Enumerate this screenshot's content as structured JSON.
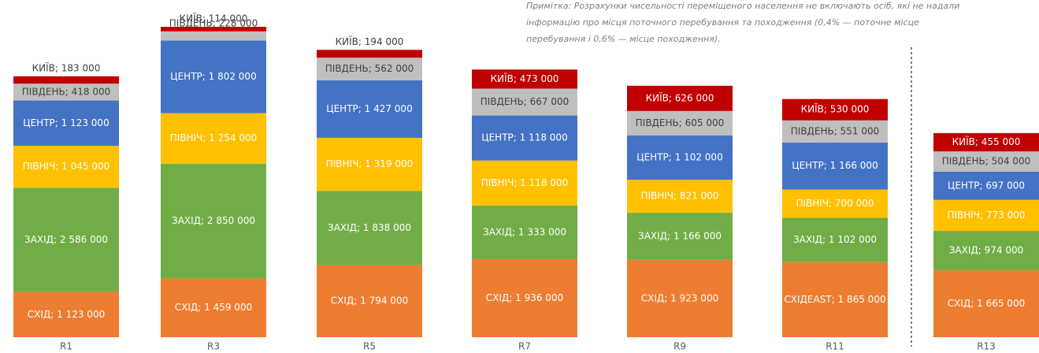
{
  "chart_data": {
    "type": "stacked_bar",
    "note": [
      "Примітка: Розрахунки чисельності переміщеного населення не включають осіб, які не надали",
      "інформацію про місця поточного перебування та походження (0,4% — поточне місце",
      "перебування і 0,6% — місце походження)."
    ],
    "categories": [
      "R1",
      "R3",
      "R5",
      "R7",
      "R9",
      "R11",
      "R13"
    ],
    "series": [
      {
        "name": "СХІД",
        "color": "#ed7d31",
        "values": [
          1123000,
          1459000,
          1794000,
          1936000,
          1923000,
          1865000,
          1665000
        ],
        "value_labels": [
          "СХІД; 1 123 000",
          "СХІД; 1 459 000",
          "СХІД; 1 794 000",
          "СХІД; 1 936 000",
          "СХІД; 1 923 000",
          "СХІДEAST; 1 865 000",
          "СХІД; 1 665 000"
        ]
      },
      {
        "name": "ЗАХІД",
        "color": "#70ad47",
        "values": [
          2586000,
          2850000,
          1838000,
          1333000,
          1166000,
          1102000,
          974000
        ],
        "value_labels": [
          "ЗАХІД; 2 586 000",
          "ЗАХІД; 2 850 000",
          "ЗАХІД; 1 838 000",
          "ЗАХІД; 1 333 000",
          "ЗАХІД; 1 166 000",
          "ЗАХІД; 1 102 000",
          "ЗАХІД; 974 000"
        ]
      },
      {
        "name": "ПІВНІЧ",
        "color": "#ffc000",
        "values": [
          1045000,
          1254000,
          1319000,
          1118000,
          821000,
          700000,
          773000
        ],
        "value_labels": [
          "ПІВНІЧ; 1 045 000",
          "ПІВНІЧ; 1 254 000",
          "ПІВНІЧ; 1 319 000",
          "ПІВНІЧ; 1 118 000",
          "ПІВНІЧ; 821 000",
          "ПІВНІЧ; 700 000",
          "ПІВНІЧ; 773 000"
        ]
      },
      {
        "name": "ЦЕНТР",
        "color": "#4472c4",
        "values": [
          1123000,
          1802000,
          1427000,
          1118000,
          1102000,
          1166000,
          697000
        ],
        "value_labels": [
          "ЦЕНТР; 1 123 000",
          "ЦЕНТР; 1 802 000",
          "ЦЕНТР; 1 427 000",
          "ЦЕНТР; 1 118 000",
          "ЦЕНТР; 1 102 000",
          "ЦЕНТР; 1 166 000",
          "ЦЕНТР; 697 000"
        ]
      },
      {
        "name": "ПІВДЕНЬ",
        "color": "#bfbfbf",
        "values": [
          418000,
          228000,
          562000,
          667000,
          605000,
          551000,
          504000
        ],
        "value_labels": [
          "ПІВДЕНЬ; 418 000",
          "ПІВДЕНЬ; 228 000",
          "ПІВДЕНЬ; 562 000",
          "ПІВДЕНЬ; 667 000",
          "ПІВДЕНЬ; 605 000",
          "ПІВДЕНЬ; 551 000",
          "ПІВДЕНЬ; 504 000"
        ]
      },
      {
        "name": "КИЇВ",
        "color": "#c00000",
        "values": [
          183000,
          114000,
          194000,
          473000,
          626000,
          530000,
          455000
        ],
        "value_labels": [
          "КИЇВ; 183 000",
          "КИЇВ; 114 000",
          "КИЇВ; 194 000",
          "КИЇВ; 473 000",
          "КИЇВ; 626 000",
          "КИЇВ; 530 000",
          "КИЇВ; 455 000"
        ]
      }
    ]
  }
}
